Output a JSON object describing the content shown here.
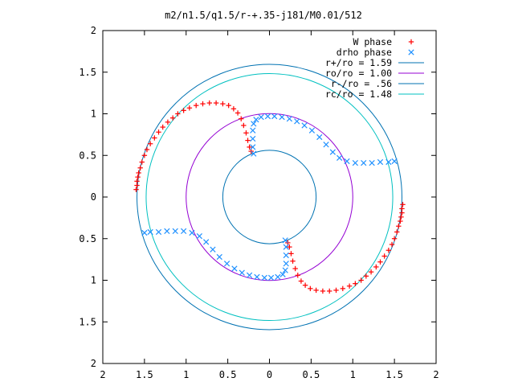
{
  "chart_data": {
    "type": "scatter",
    "title": "m2/n1.5/q1.5/r-+.35-j181/M0.01/512",
    "xlabel": "",
    "ylabel": "",
    "xlim": [
      -2,
      2
    ],
    "ylim": [
      -2,
      2
    ],
    "x_ticks": [
      {
        "value": -2,
        "label": "2"
      },
      {
        "value": -1.5,
        "label": "1.5"
      },
      {
        "value": -1,
        "label": "1"
      },
      {
        "value": -0.5,
        "label": "0.5"
      },
      {
        "value": 0,
        "label": "0"
      },
      {
        "value": 0.5,
        "label": "0.5"
      },
      {
        "value": 1,
        "label": "1"
      },
      {
        "value": 1.5,
        "label": "1.5"
      },
      {
        "value": 2,
        "label": "2"
      }
    ],
    "y_ticks": [
      {
        "value": 2,
        "label": "2"
      },
      {
        "value": 1.5,
        "label": "1.5"
      },
      {
        "value": 1,
        "label": "1"
      },
      {
        "value": 0.5,
        "label": "0.5"
      },
      {
        "value": 0,
        "label": "0"
      },
      {
        "value": -0.5,
        "label": "0.5"
      },
      {
        "value": -1,
        "label": "1"
      },
      {
        "value": -1.5,
        "label": "1.5"
      },
      {
        "value": -2,
        "label": "2"
      }
    ],
    "grid": false,
    "legend_position": "top-right",
    "circles": [
      {
        "name": "r+/ro = 1.59",
        "radius": 1.59,
        "color": "#0072b2"
      },
      {
        "name": "ro/ro = 1.00",
        "radius": 1.0,
        "color": "#9400d3"
      },
      {
        "name": "r-/ro = .56",
        "radius": 0.56,
        "color": "#0072b2"
      },
      {
        "name": "rc/ro = 1.48",
        "radius": 1.48,
        "color": "#00c0c0"
      }
    ],
    "series": [
      {
        "name": "W phase",
        "marker": "plus",
        "color": "#ff0000",
        "points": [
          [
            -1.6,
            0.09
          ],
          [
            -1.59,
            0.14
          ],
          [
            -1.59,
            0.19
          ],
          [
            -1.58,
            0.24
          ],
          [
            -1.57,
            0.29
          ],
          [
            -1.55,
            0.35
          ],
          [
            -1.53,
            0.42
          ],
          [
            -1.5,
            0.5
          ],
          [
            -1.47,
            0.57
          ],
          [
            -1.43,
            0.64
          ],
          [
            -1.38,
            0.71
          ],
          [
            -1.33,
            0.78
          ],
          [
            -1.28,
            0.84
          ],
          [
            -1.22,
            0.9
          ],
          [
            -1.16,
            0.95
          ],
          [
            -1.1,
            1.0
          ],
          [
            -1.03,
            1.04
          ],
          [
            -0.96,
            1.07
          ],
          [
            -0.88,
            1.1
          ],
          [
            -0.8,
            1.12
          ],
          [
            -0.72,
            1.13
          ],
          [
            -0.64,
            1.13
          ],
          [
            -0.56,
            1.12
          ],
          [
            -0.49,
            1.1
          ],
          [
            -0.43,
            1.06
          ],
          [
            -0.38,
            1.01
          ],
          [
            -0.34,
            0.94
          ],
          [
            -0.31,
            0.86
          ],
          [
            -0.28,
            0.77
          ],
          [
            -0.26,
            0.68
          ],
          [
            -0.24,
            0.6
          ],
          [
            -0.22,
            0.55
          ],
          [
            1.6,
            -0.09
          ],
          [
            1.59,
            -0.14
          ],
          [
            1.59,
            -0.19
          ],
          [
            1.58,
            -0.24
          ],
          [
            1.57,
            -0.29
          ],
          [
            1.55,
            -0.35
          ],
          [
            1.53,
            -0.42
          ],
          [
            1.5,
            -0.5
          ],
          [
            1.47,
            -0.57
          ],
          [
            1.43,
            -0.64
          ],
          [
            1.38,
            -0.71
          ],
          [
            1.33,
            -0.78
          ],
          [
            1.28,
            -0.84
          ],
          [
            1.22,
            -0.9
          ],
          [
            1.16,
            -0.95
          ],
          [
            1.1,
            -1.0
          ],
          [
            1.03,
            -1.04
          ],
          [
            0.96,
            -1.07
          ],
          [
            0.88,
            -1.1
          ],
          [
            0.8,
            -1.12
          ],
          [
            0.72,
            -1.13
          ],
          [
            0.64,
            -1.13
          ],
          [
            0.56,
            -1.12
          ],
          [
            0.49,
            -1.1
          ],
          [
            0.43,
            -1.06
          ],
          [
            0.38,
            -1.01
          ],
          [
            0.34,
            -0.94
          ],
          [
            0.31,
            -0.86
          ],
          [
            0.28,
            -0.77
          ],
          [
            0.26,
            -0.68
          ],
          [
            0.24,
            -0.6
          ],
          [
            0.22,
            -0.55
          ]
        ]
      },
      {
        "name": "drho phase",
        "marker": "cross",
        "color": "#1e90ff",
        "points": [
          [
            -0.19,
            0.52
          ],
          [
            -0.2,
            0.6
          ],
          [
            -0.2,
            0.7
          ],
          [
            -0.2,
            0.8
          ],
          [
            -0.19,
            0.88
          ],
          [
            -0.16,
            0.93
          ],
          [
            -0.1,
            0.96
          ],
          [
            -0.02,
            0.97
          ],
          [
            0.06,
            0.97
          ],
          [
            0.15,
            0.96
          ],
          [
            0.24,
            0.94
          ],
          [
            0.33,
            0.91
          ],
          [
            0.42,
            0.86
          ],
          [
            0.51,
            0.8
          ],
          [
            0.6,
            0.72
          ],
          [
            0.68,
            0.63
          ],
          [
            0.76,
            0.54
          ],
          [
            0.84,
            0.47
          ],
          [
            0.93,
            0.43
          ],
          [
            1.03,
            0.41
          ],
          [
            1.13,
            0.41
          ],
          [
            1.23,
            0.41
          ],
          [
            1.33,
            0.42
          ],
          [
            1.43,
            0.42
          ],
          [
            1.5,
            0.43
          ],
          [
            0.19,
            -0.52
          ],
          [
            0.2,
            -0.6
          ],
          [
            0.2,
            -0.7
          ],
          [
            0.2,
            -0.8
          ],
          [
            0.19,
            -0.88
          ],
          [
            0.16,
            -0.93
          ],
          [
            0.1,
            -0.96
          ],
          [
            0.02,
            -0.97
          ],
          [
            -0.06,
            -0.97
          ],
          [
            -0.15,
            -0.96
          ],
          [
            -0.24,
            -0.94
          ],
          [
            -0.33,
            -0.91
          ],
          [
            -0.42,
            -0.86
          ],
          [
            -0.51,
            -0.8
          ],
          [
            -0.6,
            -0.72
          ],
          [
            -0.68,
            -0.63
          ],
          [
            -0.76,
            -0.54
          ],
          [
            -0.84,
            -0.47
          ],
          [
            -0.93,
            -0.43
          ],
          [
            -1.03,
            -0.41
          ],
          [
            -1.13,
            -0.41
          ],
          [
            -1.23,
            -0.41
          ],
          [
            -1.33,
            -0.42
          ],
          [
            -1.43,
            -0.42
          ],
          [
            -1.5,
            -0.43
          ]
        ]
      }
    ]
  }
}
